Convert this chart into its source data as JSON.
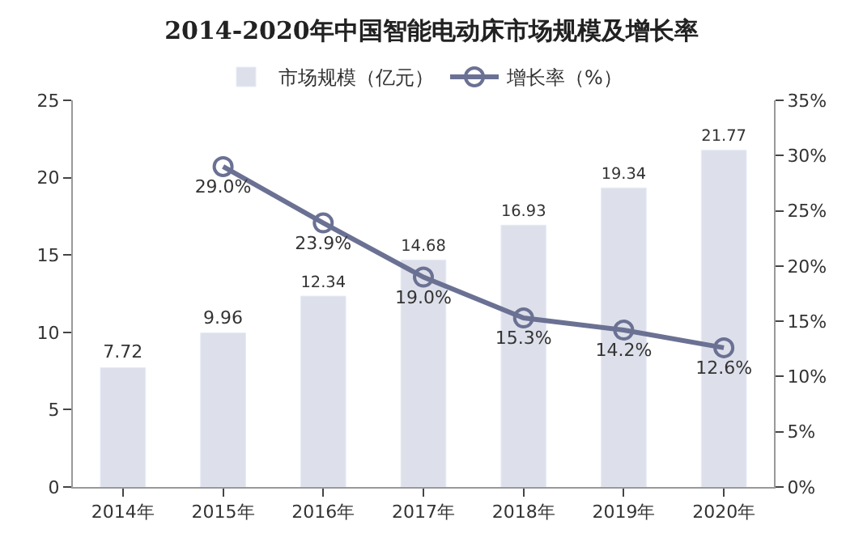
{
  "chart_data": {
    "type": "bar",
    "title": "2014-2020年中国智能电动床市场规模及增长率",
    "categories": [
      "2014年",
      "2015年",
      "2016年",
      "2017年",
      "2018年",
      "2019年",
      "2020年"
    ],
    "series": [
      {
        "name": "市场规模（亿元）",
        "color": "#dde0ea",
        "values": [
          7.72,
          9.96,
          12.34,
          14.68,
          16.93,
          19.34,
          21.77
        ],
        "value_labels": [
          "7.72",
          "9.96",
          "12.34",
          "14.68",
          "16.93",
          "19.34",
          "21.77"
        ]
      },
      {
        "name": "增长率（%）",
        "type": "line",
        "axis": "y2",
        "color": "#6b7193",
        "marker": "circle",
        "values": [
          null,
          29.0,
          23.9,
          19.0,
          15.3,
          14.2,
          12.6
        ],
        "value_labels": [
          null,
          "29.0%",
          "23.9%",
          "19.0%",
          "15.3%",
          "14.2%",
          "12.6%"
        ]
      }
    ],
    "ylim": [
      0,
      25
    ],
    "yticks": [
      0,
      5,
      10,
      15,
      20,
      25
    ],
    "y2lim": [
      0,
      35
    ],
    "y2ticks": [
      {
        "value": 0,
        "label": "0%"
      },
      {
        "value": 5,
        "label": "5%"
      },
      {
        "value": 10,
        "label": "10%"
      },
      {
        "value": 15,
        "label": "15%"
      },
      {
        "value": 20,
        "label": "20%"
      },
      {
        "value": 25,
        "label": "25%"
      },
      {
        "value": 30,
        "label": "30%"
      },
      {
        "value": 35,
        "label": "35%"
      }
    ],
    "legend": "top"
  }
}
